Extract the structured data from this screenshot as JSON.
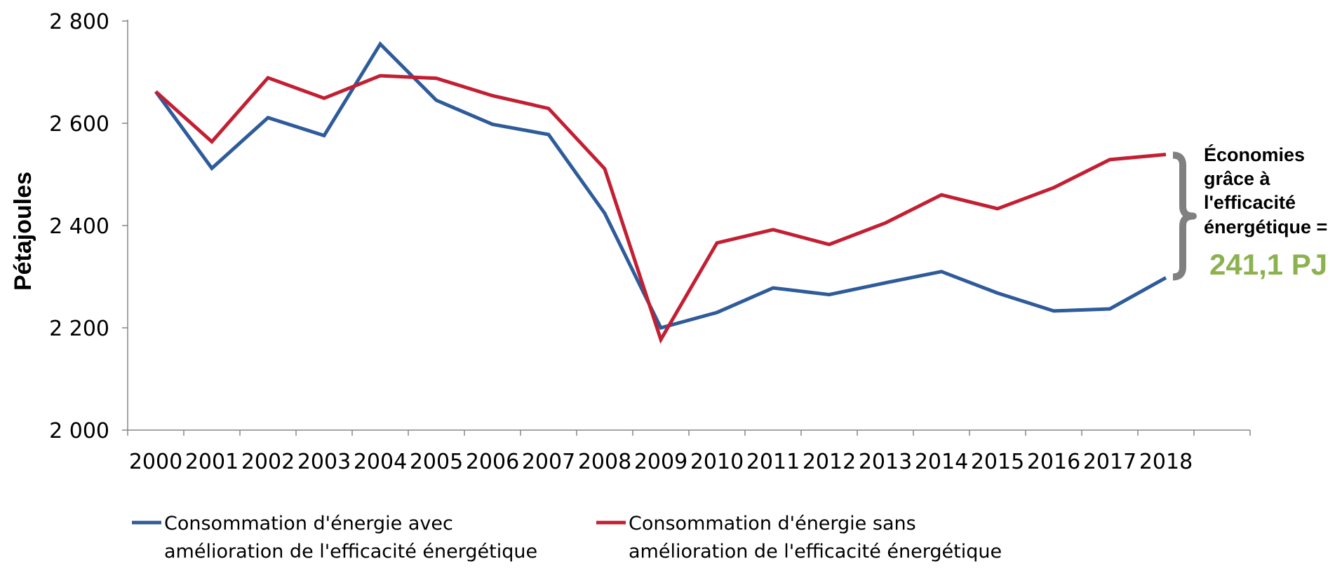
{
  "chart_data": {
    "type": "line",
    "title": "",
    "xlabel": "",
    "ylabel": "Pétajoules",
    "ylim": [
      2000,
      2800
    ],
    "yticks": [
      2000,
      2200,
      2400,
      2600,
      2800
    ],
    "ytick_labels": [
      "2 000",
      "2 200",
      "2 400",
      "2 600",
      "2 800"
    ],
    "categories": [
      "2000",
      "2001",
      "2002",
      "2003",
      "2004",
      "2005",
      "2006",
      "2007",
      "2008",
      "2009",
      "2010",
      "2011",
      "2012",
      "2013",
      "2014",
      "2015",
      "2016",
      "2017",
      "2018"
    ],
    "grid": false,
    "legend_position": "bottom",
    "series": [
      {
        "name_lines": [
          "Consommation d'énergie avec",
          "amélioration de l'efficacité énergétique"
        ],
        "color": "#2e5b9a",
        "values": [
          2662,
          2512,
          2611,
          2576,
          2755,
          2645,
          2598,
          2578,
          2424,
          2200,
          2230,
          2278,
          2265,
          2288,
          2310,
          2268,
          2233,
          2237,
          2298
        ]
      },
      {
        "name_lines": [
          "Consommation d'énergie sans",
          "amélioration de l'efficacité énergétique"
        ],
        "color": "#c31f33",
        "values": [
          2662,
          2564,
          2689,
          2649,
          2693,
          2688,
          2654,
          2629,
          2511,
          2177,
          2366,
          2392,
          2363,
          2405,
          2460,
          2433,
          2474,
          2529,
          2539
        ]
      }
    ],
    "annotation": {
      "text_lines": [
        "Économies",
        "grâce à",
        "l'efficacité",
        "énergétique ="
      ],
      "value": "241,1 PJ",
      "value_color": "#8cb24f",
      "brace_color": "#808080"
    }
  }
}
